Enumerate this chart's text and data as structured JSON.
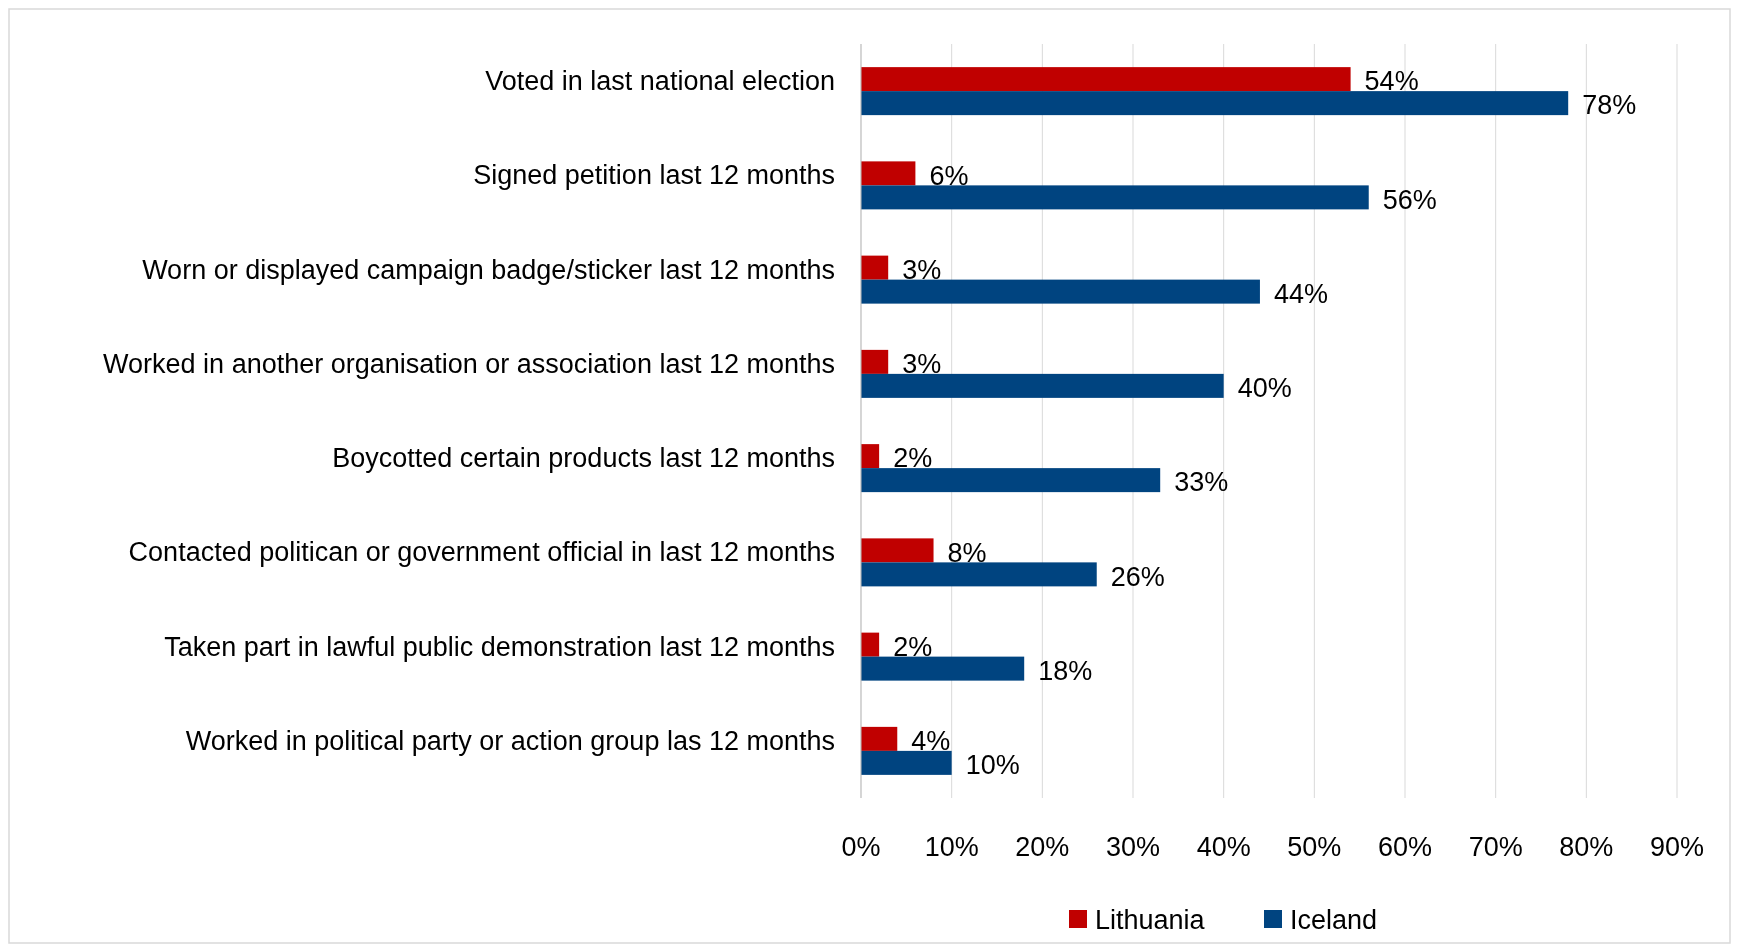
{
  "chart_data": {
    "type": "bar",
    "orientation": "horizontal",
    "categories": [
      "Voted in last national election",
      "Signed petition last 12 months",
      "Worn or displayed campaign badge/sticker last 12 months",
      "Worked in another organisation or association last 12 months",
      "Boycotted certain products last 12 months",
      "Contacted politican or government official in last 12 months",
      "Taken part in lawful public demonstration last 12 months",
      "Worked in political party or action group las 12 months"
    ],
    "series": [
      {
        "name": "Lithuania",
        "color": "#c00000",
        "values": [
          54,
          6,
          3,
          3,
          2,
          8,
          2,
          4
        ],
        "value_labels": [
          "54%",
          "6%",
          "3%",
          "3%",
          "2%",
          "8%",
          "2%",
          "4%"
        ]
      },
      {
        "name": "Iceland",
        "color": "#004480",
        "values": [
          78,
          56,
          44,
          40,
          33,
          26,
          18,
          10
        ],
        "value_labels": [
          "78%",
          "56%",
          "44%",
          "40%",
          "33%",
          "26%",
          "18%",
          "10%"
        ]
      }
    ],
    "xlim": [
      0,
      90
    ],
    "xticks": [
      {
        "value": 0,
        "label": "0%"
      },
      {
        "value": 10,
        "label": "10%"
      },
      {
        "value": 20,
        "label": "20%"
      },
      {
        "value": 30,
        "label": "30%"
      },
      {
        "value": 40,
        "label": "40%"
      },
      {
        "value": 50,
        "label": "50%"
      },
      {
        "value": 60,
        "label": "60%"
      },
      {
        "value": 70,
        "label": "70%"
      },
      {
        "value": 80,
        "label": "80%"
      },
      {
        "value": 90,
        "label": "90%"
      }
    ],
    "grid": "x",
    "legend": "bottom"
  }
}
